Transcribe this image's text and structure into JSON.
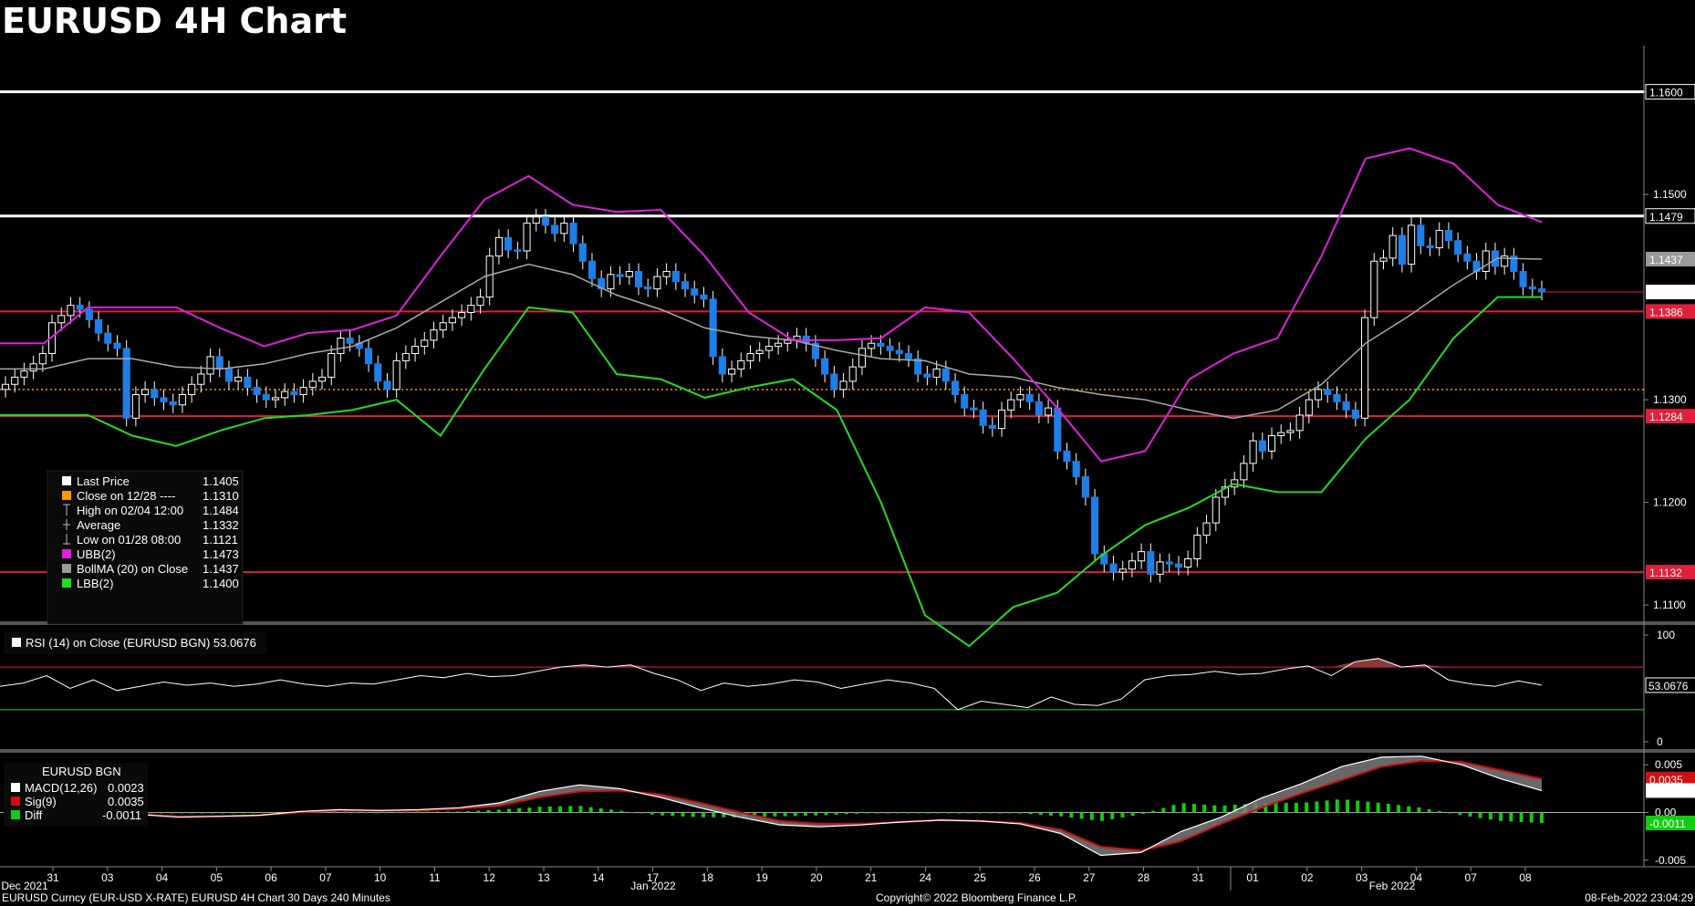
{
  "header": {
    "title": "EURUSD 4H Chart"
  },
  "footer": {
    "left": "EURUSD Curncy (EUR-USD X-RATE) EURUSD 4H Chart 30 Days 240 Minutes",
    "center": "Copyright© 2022 Bloomberg Finance L.P.",
    "right": "08-Feb-2022 23:04:29"
  },
  "colors": {
    "background": "#000000",
    "up_candle": "#ffffff",
    "down_candle": "#1e7fe6",
    "ubb": "#e020e0",
    "lbb": "#22dd22",
    "bollma": "#aaaaaa",
    "resistance": "#ffffff",
    "level_line": "#e0203a",
    "close_line": "#ff9900",
    "macd": "#ffffff",
    "signal": "#d01010",
    "diff": "#11cc11"
  },
  "chart_data": [
    {
      "type": "candlestick",
      "panel": "price",
      "title": "EURUSD 4H Chart",
      "ylim": [
        1.1085,
        1.1645
      ],
      "y_ticks": [
        "1.1600",
        "1.1500",
        "1.1300",
        "1.1200",
        "1.1100"
      ],
      "x_labels": [
        "31",
        "03",
        "04",
        "05",
        "06",
        "07",
        "10",
        "11",
        "12",
        "13",
        "14",
        "17",
        "18",
        "19",
        "20",
        "21",
        "24",
        "25",
        "26",
        "27",
        "28",
        "31",
        "01",
        "02",
        "03",
        "04",
        "07",
        "08"
      ],
      "x_month_labels": [
        "Dec 2021",
        "Jan 2022",
        "Feb 2022"
      ],
      "horizontal_levels": [
        {
          "value": 1.16,
          "label": "1.1600",
          "style": "white"
        },
        {
          "value": 1.1479,
          "label": "1.1479",
          "style": "white"
        },
        {
          "value": 1.1386,
          "label": "1.1386",
          "style": "red"
        },
        {
          "value": 1.1284,
          "label": "1.1284",
          "style": "red"
        },
        {
          "value": 1.1132,
          "label": "1.1132",
          "style": "red"
        },
        {
          "value": 1.131,
          "label": "",
          "style": "dotted-orange"
        }
      ],
      "axis_markers": [
        {
          "value": 1.1437,
          "label": "1.1437",
          "style": "gray"
        },
        {
          "value": 1.1405,
          "label": "1.1405",
          "style": "white"
        }
      ],
      "legend": [
        {
          "symbol": "square-white",
          "label": "Last Price",
          "value": "1.1405"
        },
        {
          "symbol": "square-orange",
          "label": "Close on 12/28 ----",
          "value": "1.1310"
        },
        {
          "symbol": "high-mark",
          "label": "High on 02/04 12:00",
          "value": "1.1484"
        },
        {
          "symbol": "avg-mark",
          "label": "Average",
          "value": "1.1332"
        },
        {
          "symbol": "low-mark",
          "label": "Low on 01/28 08:00",
          "value": "1.1121"
        },
        {
          "symbol": "square-magenta",
          "label": "UBB(2)",
          "value": "1.1473"
        },
        {
          "symbol": "square-gray",
          "label": "BollMA (20)  on Close",
          "value": "1.1437"
        },
        {
          "symbol": "square-green",
          "label": "LBB(2)",
          "value": "1.1400"
        }
      ],
      "close_series": [
        1.1315,
        1.1322,
        1.1328,
        1.1335,
        1.1345,
        1.1375,
        1.1382,
        1.1392,
        1.1388,
        1.1378,
        1.1365,
        1.1355,
        1.135,
        1.1282,
        1.1305,
        1.131,
        1.1302,
        1.1298,
        1.1295,
        1.1305,
        1.1315,
        1.1325,
        1.1342,
        1.133,
        1.1318,
        1.1322,
        1.1312,
        1.1305,
        1.13,
        1.1302,
        1.1308,
        1.1305,
        1.1312,
        1.1318,
        1.1322,
        1.1345,
        1.136,
        1.1355,
        1.135,
        1.1335,
        1.1318,
        1.131,
        1.1338,
        1.1345,
        1.1352,
        1.1358,
        1.1368,
        1.1375,
        1.138,
        1.1385,
        1.1392,
        1.14,
        1.144,
        1.1458,
        1.1446,
        1.1445,
        1.1472,
        1.1478,
        1.147,
        1.1462,
        1.1472,
        1.1452,
        1.1435,
        1.1418,
        1.1408,
        1.1422,
        1.142,
        1.1425,
        1.141,
        1.1408,
        1.142,
        1.1425,
        1.1415,
        1.1408,
        1.1402,
        1.1398,
        1.1342,
        1.1325,
        1.133,
        1.1338,
        1.1345,
        1.1348,
        1.1352,
        1.1355,
        1.1358,
        1.1362,
        1.1355,
        1.134,
        1.1325,
        1.131,
        1.1318,
        1.1332,
        1.135,
        1.1355,
        1.1352,
        1.1348,
        1.1345,
        1.134,
        1.1325,
        1.1322,
        1.133,
        1.1318,
        1.1305,
        1.1292,
        1.129,
        1.1275,
        1.1272,
        1.129,
        1.13,
        1.1305,
        1.1298,
        1.1285,
        1.1292,
        1.125,
        1.124,
        1.1225,
        1.1205,
        1.115,
        1.114,
        1.1132,
        1.1135,
        1.1143,
        1.1152,
        1.113,
        1.1142,
        1.114,
        1.1137,
        1.1145,
        1.1168,
        1.118,
        1.1205,
        1.1215,
        1.1222,
        1.1238,
        1.126,
        1.125,
        1.1265,
        1.1268,
        1.127,
        1.1285,
        1.13,
        1.131,
        1.1305,
        1.1298,
        1.129,
        1.1282,
        1.138,
        1.1435,
        1.1438,
        1.146,
        1.1432,
        1.147,
        1.145,
        1.1448,
        1.1465,
        1.1455,
        1.1442,
        1.1435,
        1.1425,
        1.1445,
        1.143,
        1.144,
        1.1425,
        1.141,
        1.1408,
        1.1405
      ],
      "bollma_series": [
        1.133,
        1.133,
        1.134,
        1.134,
        1.1332,
        1.133,
        1.1335,
        1.1345,
        1.1352,
        1.137,
        1.1395,
        1.142,
        1.1432,
        1.1422,
        1.1402,
        1.1388,
        1.137,
        1.1362,
        1.1358,
        1.1348,
        1.134,
        1.1338,
        1.1325,
        1.1322,
        1.1312,
        1.1305,
        1.13,
        1.129,
        1.1282,
        1.129,
        1.1315,
        1.1355,
        1.1382,
        1.1412,
        1.1438,
        1.1437
      ],
      "ubb_series": [
        1.1355,
        1.1355,
        1.139,
        1.139,
        1.139,
        1.137,
        1.1352,
        1.1365,
        1.1368,
        1.1382,
        1.144,
        1.1495,
        1.1518,
        1.149,
        1.1483,
        1.1485,
        1.144,
        1.1385,
        1.1358,
        1.1358,
        1.136,
        1.139,
        1.1385,
        1.134,
        1.1292,
        1.124,
        1.125,
        1.132,
        1.1345,
        1.136,
        1.144,
        1.1535,
        1.1545,
        1.153,
        1.149,
        1.1473
      ],
      "lbb_series": [
        1.1285,
        1.1285,
        1.1285,
        1.1265,
        1.1255,
        1.127,
        1.1282,
        1.1285,
        1.129,
        1.13,
        1.1265,
        1.133,
        1.139,
        1.1385,
        1.1325,
        1.132,
        1.1302,
        1.1312,
        1.132,
        1.129,
        1.12,
        1.109,
        1.106,
        1.1098,
        1.1112,
        1.1148,
        1.1178,
        1.1195,
        1.1218,
        1.121,
        1.121,
        1.1262,
        1.13,
        1.136,
        1.14,
        1.14
      ]
    },
    {
      "type": "line",
      "panel": "rsi",
      "label": "RSI (14)  on Close (EURUSD BGN) 53.0676",
      "ylim": [
        0,
        100
      ],
      "y_ticks": [
        "100",
        "0"
      ],
      "overbought": 70,
      "oversold": 30,
      "last_label": "53.0676",
      "values": [
        52,
        55,
        62,
        50,
        58,
        48,
        52,
        56,
        53,
        55,
        52,
        54,
        58,
        54,
        52,
        55,
        54,
        58,
        62,
        60,
        64,
        61,
        62,
        66,
        70,
        72,
        70,
        72,
        64,
        58,
        48,
        55,
        52,
        54,
        58,
        56,
        50,
        54,
        58,
        55,
        50,
        30,
        38,
        35,
        32,
        42,
        35,
        34,
        40,
        58,
        62,
        63,
        66,
        63,
        64,
        68,
        71,
        62,
        75,
        78,
        70,
        72,
        58,
        54,
        52,
        57,
        53
      ]
    },
    {
      "type": "line",
      "panel": "macd",
      "title": "EURUSD BGN",
      "ylim": [
        -0.0055,
        0.0055
      ],
      "y_ticks": [
        "0.005",
        "0.00",
        "-0.005"
      ],
      "series": [
        {
          "name": "MACD(12,26)",
          "value": "0.0023"
        },
        {
          "name": "Sig(9)",
          "value": "0.0035"
        },
        {
          "name": "Diff",
          "value": "-0.0011"
        }
      ],
      "axis_markers": [
        "0.0035",
        "0.0023",
        "-0.0011"
      ],
      "macd_values": [
        -0.0005,
        -0.0002,
        -0.0001,
        -0.0002,
        -0.0005,
        -0.0004,
        -0.0003,
        0.0001,
        0.0003,
        0.0002,
        0.0003,
        0.0005,
        0.001,
        0.0022,
        0.0029,
        0.0025,
        0.0016,
        0.0005,
        -0.0005,
        -0.0013,
        -0.0015,
        -0.0013,
        -0.001,
        -0.0008,
        -0.0009,
        -0.0012,
        -0.0022,
        -0.0045,
        -0.0042,
        -0.002,
        -0.0005,
        0.0015,
        0.003,
        0.0048,
        0.0058,
        0.0059,
        0.005,
        0.0035,
        0.0023
      ],
      "signal_values": [
        -0.0003,
        -0.0002,
        -0.0001,
        -0.0002,
        -0.0004,
        -0.0004,
        -0.0003,
        0.0,
        0.0002,
        0.0002,
        0.0002,
        0.0004,
        0.0007,
        0.0016,
        0.0022,
        0.0023,
        0.0019,
        0.001,
        0.0,
        -0.0009,
        -0.0012,
        -0.0012,
        -0.001,
        -0.0008,
        -0.0009,
        -0.0011,
        -0.0018,
        -0.0036,
        -0.004,
        -0.003,
        -0.0012,
        0.0005,
        0.002,
        0.0034,
        0.0048,
        0.0054,
        0.0053,
        0.0044,
        0.0035
      ],
      "diff_values": [
        -0.0002,
        0.0,
        0.0,
        0.0,
        -0.0001,
        0.0,
        0.0,
        0.0001,
        0.0001,
        0.0,
        0.0001,
        0.0001,
        0.0003,
        0.0006,
        0.0007,
        0.0002,
        -0.0003,
        -0.0005,
        -0.0005,
        -0.0004,
        -0.0003,
        -0.0001,
        0.0,
        0.0,
        0.0,
        -0.0001,
        -0.0004,
        -0.0009,
        -0.0002,
        0.001,
        0.0007,
        0.001,
        0.001,
        0.0014,
        0.001,
        0.0005,
        -0.0003,
        -0.0009,
        -0.0011
      ]
    }
  ]
}
